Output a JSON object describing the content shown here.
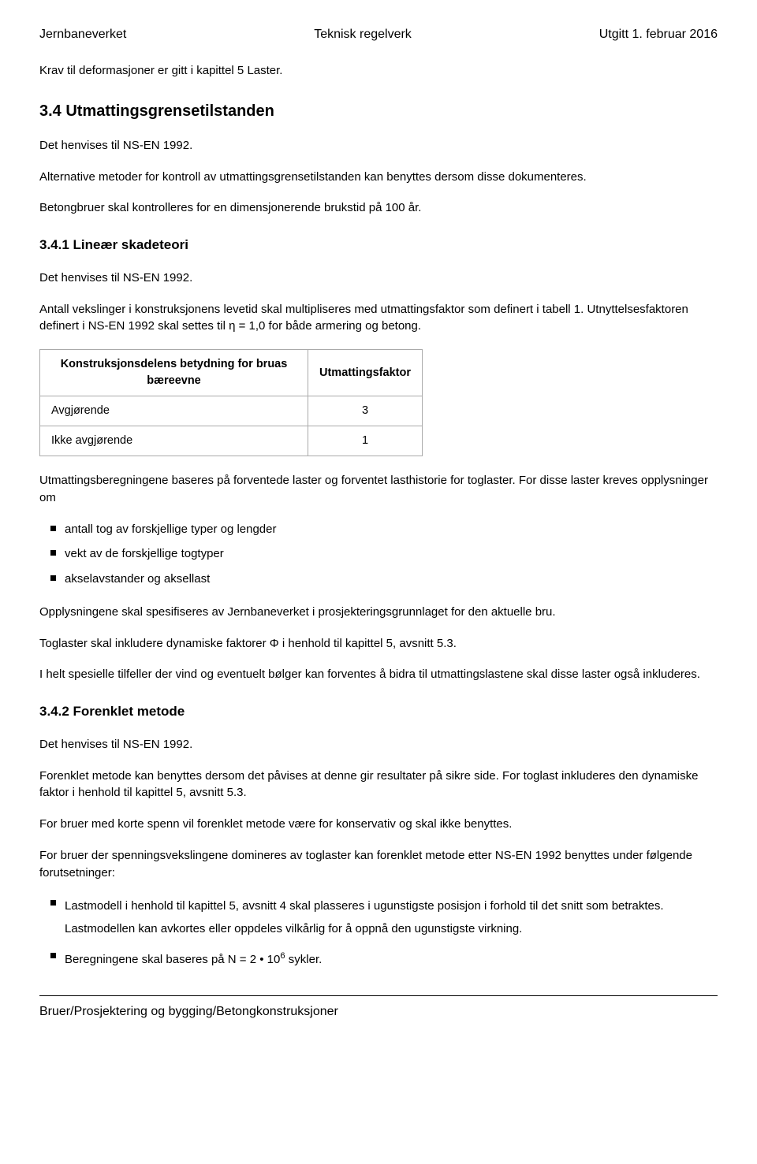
{
  "header": {
    "left": "Jernbaneverket",
    "center": "Teknisk regelverk",
    "right": "Utgitt 1. februar 2016"
  },
  "intro_para": "Krav til deformasjoner er gitt i kapittel 5 Laster.",
  "sec34": {
    "title": "3.4 Utmattingsgrensetilstanden",
    "p1": "Det henvises til NS-EN 1992.",
    "p2": "Alternative metoder for kontroll av utmattingsgrensetilstanden kan benyttes dersom disse dokumenteres.",
    "p3": "Betongbruer skal kontrolleres for en dimensjonerende brukstid på 100 år."
  },
  "sec341": {
    "title": "3.4.1 Lineær skadeteori",
    "p1": "Det henvises til NS-EN 1992.",
    "p2": "Antall vekslinger i konstruksjonens levetid skal multipliseres med utmattingsfaktor som definert i tabell 1. Utnyttelsesfaktoren definert i NS-EN 1992 skal settes til η = 1,0 for både armering og betong."
  },
  "table": {
    "col1": "Konstruksjonsdelens betydning for bruas bæreevne",
    "col2": "Utmattingsfaktor",
    "rows": [
      {
        "label": "Avgjørende",
        "value": "3"
      },
      {
        "label": "Ikke avgjørende",
        "value": "1"
      }
    ]
  },
  "after_table": {
    "p1": "Utmattingsberegningene baseres på forventede laster og forventet lasthistorie for toglaster. For disse laster kreves opplysninger om",
    "bullets1": [
      "antall tog av forskjellige typer og lengder",
      "vekt av de forskjellige togtyper",
      "akselavstander og aksellast"
    ],
    "p2": "Opplysningene skal spesifiseres av Jernbaneverket i prosjekteringsgrunnlaget for den aktuelle bru.",
    "p3": "Toglaster skal inkludere dynamiske faktorer Φ i henhold til kapittel 5, avsnitt 5.3.",
    "p4": "I helt spesielle tilfeller der vind og eventuelt bølger kan forventes å bidra til utmattingslastene skal disse laster også inkluderes."
  },
  "sec342": {
    "title": "3.4.2 Forenklet metode",
    "p1": "Det henvises til NS-EN 1992.",
    "p2": "Forenklet metode kan benyttes dersom det påvises at denne gir resultater på sikre side. For toglast inkluderes den dynamiske faktor i henhold til kapittel 5, avsnitt 5.3.",
    "p3": "For bruer med korte spenn vil forenklet metode være for konservativ og skal ikke benyttes.",
    "p4": "For bruer der spenningsvekslingene domineres av toglaster kan forenklet metode etter NS-EN 1992 benyttes under følgende forutsetninger:",
    "bullets2": [
      "Lastmodell i henhold til kapittel 5, avsnitt 4 skal plasseres i ugunstigste posisjon i forhold til det snitt som betraktes. Lastmodellen kan avkortes eller oppdeles vilkårlig for å oppnå den ugunstigste virkning."
    ],
    "bullet_last_prefix": "Beregningene skal baseres på N = 2 • 10",
    "bullet_last_exp": "6",
    "bullet_last_suffix": " sykler."
  },
  "footer": "Bruer/Prosjektering og bygging/Betongkonstruksjoner"
}
